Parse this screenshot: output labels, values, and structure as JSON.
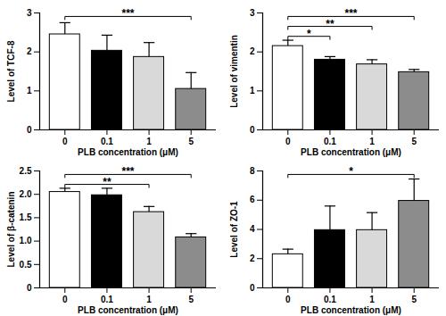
{
  "chart_data": [
    {
      "type": "bar",
      "xlabel": "PLB concentration (μM)",
      "ylabel": "Level of TCF-8",
      "categories": [
        "0",
        "0.1",
        "1",
        "5"
      ],
      "values": [
        2.45,
        2.03,
        1.87,
        1.05
      ],
      "errors": [
        0.3,
        0.4,
        0.37,
        0.42
      ],
      "colors": [
        "#ffffff",
        "#000000",
        "#d9d9d9",
        "#8c8c8c"
      ],
      "ylim": [
        0,
        3
      ],
      "yticks": [
        0,
        1,
        2,
        3
      ],
      "annotations": [
        {
          "from": "0",
          "to": "5",
          "label": "***"
        }
      ]
    },
    {
      "type": "bar",
      "xlabel": "PLB concentration (μM)",
      "ylabel": "Level of vimentin",
      "categories": [
        "0",
        "0.1",
        "1",
        "5"
      ],
      "values": [
        2.15,
        1.8,
        1.68,
        1.48
      ],
      "errors": [
        0.15,
        0.08,
        0.12,
        0.07
      ],
      "colors": [
        "#ffffff",
        "#000000",
        "#d9d9d9",
        "#8c8c8c"
      ],
      "ylim": [
        0,
        3
      ],
      "yticks": [
        0,
        1,
        2,
        3
      ],
      "annotations": [
        {
          "from": "0",
          "to": "0.1",
          "label": "*"
        },
        {
          "from": "0",
          "to": "1",
          "label": "**"
        },
        {
          "from": "0",
          "to": "5",
          "label": "***"
        }
      ]
    },
    {
      "type": "bar",
      "xlabel": "PLB concentration (μM)",
      "ylabel": "Level of β-catenin",
      "categories": [
        "0",
        "0.1",
        "1",
        "5"
      ],
      "values": [
        2.05,
        1.98,
        1.62,
        1.08
      ],
      "errors": [
        0.08,
        0.15,
        0.12,
        0.08
      ],
      "colors": [
        "#ffffff",
        "#000000",
        "#d9d9d9",
        "#8c8c8c"
      ],
      "ylim": [
        0,
        2.5
      ],
      "yticks": [
        0,
        0.5,
        {
          "value": 1,
          "label": "1.0"
        },
        1.5,
        {
          "value": 2,
          "label": "2.0"
        },
        2.5
      ],
      "annotations": [
        {
          "from": "0",
          "to": "1",
          "label": "**"
        },
        {
          "from": "0",
          "to": "5",
          "label": "***"
        }
      ]
    },
    {
      "type": "bar",
      "xlabel": "PLB concentration (μM)",
      "ylabel": "Level of ZO-1",
      "categories": [
        "0",
        "0.1",
        "1",
        "5"
      ],
      "values": [
        2.3,
        3.95,
        3.95,
        5.95
      ],
      "errors": [
        0.35,
        1.65,
        1.2,
        1.5
      ],
      "colors": [
        "#ffffff",
        "#000000",
        "#d9d9d9",
        "#8c8c8c"
      ],
      "ylim": [
        0,
        8
      ],
      "yticks": [
        0,
        2,
        4,
        6,
        8
      ],
      "annotations": [
        {
          "from": "0",
          "to": "5",
          "label": "*"
        }
      ]
    }
  ]
}
